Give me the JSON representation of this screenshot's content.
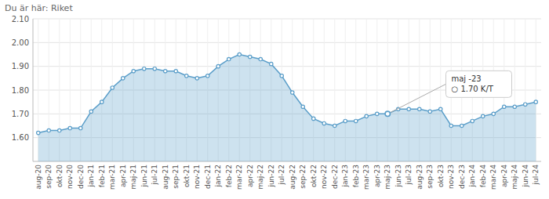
{
  "chart_data": {
    "type": "area",
    "title": "Du är här: Riket",
    "categories": [
      "aug-20",
      "sep-20",
      "okt-20",
      "nov-20",
      "dec-20",
      "jan-21",
      "feb-21",
      "mar-21",
      "apr-21",
      "maj-21",
      "jun-21",
      "jul-21",
      "aug-21",
      "sep-21",
      "okt-21",
      "nov-21",
      "dec-21",
      "jan-22",
      "feb-22",
      "mar-22",
      "apr-22",
      "maj-22",
      "jun-22",
      "jul-22",
      "aug-22",
      "sep-22",
      "okt-22",
      "nov-22",
      "dec-22",
      "jan-23",
      "feb-23",
      "mar-23",
      "apr-23",
      "maj-23",
      "jun-23",
      "jul-23",
      "aug-23",
      "sep-23",
      "okt-23",
      "nov-23",
      "dec-23",
      "jan-24",
      "feb-24",
      "mar-24",
      "apr-24",
      "maj-24",
      "jun-24",
      "jul-24"
    ],
    "values": [
      1.62,
      1.63,
      1.63,
      1.64,
      1.64,
      1.71,
      1.75,
      1.81,
      1.85,
      1.88,
      1.89,
      1.89,
      1.88,
      1.88,
      1.86,
      1.85,
      1.86,
      1.9,
      1.93,
      1.95,
      1.94,
      1.93,
      1.91,
      1.86,
      1.79,
      1.73,
      1.68,
      1.66,
      1.65,
      1.67,
      1.67,
      1.69,
      1.7,
      1.7,
      1.72,
      1.72,
      1.72,
      1.71,
      1.72,
      1.65,
      1.65,
      1.67,
      1.69,
      1.7,
      1.73,
      1.73,
      1.74,
      1.75
    ],
    "color": "#5b9ec9",
    "marker": "circle",
    "ylim": [
      1.5,
      2.1
    ],
    "yticks": [
      {
        "value": 1.6,
        "label": "1.60"
      },
      {
        "value": 1.7,
        "label": "1.70"
      },
      {
        "value": 1.8,
        "label": "1.80"
      },
      {
        "value": 1.9,
        "label": "1.90"
      },
      {
        "value": 2.0,
        "label": "2.00"
      },
      {
        "value": 2.1,
        "label": "2.10"
      }
    ],
    "grid": true,
    "annotations": [
      {
        "x": "maj-23",
        "y": 1.7,
        "text": [
          "maj -23",
          "○ 1.70 K/T"
        ]
      }
    ]
  }
}
